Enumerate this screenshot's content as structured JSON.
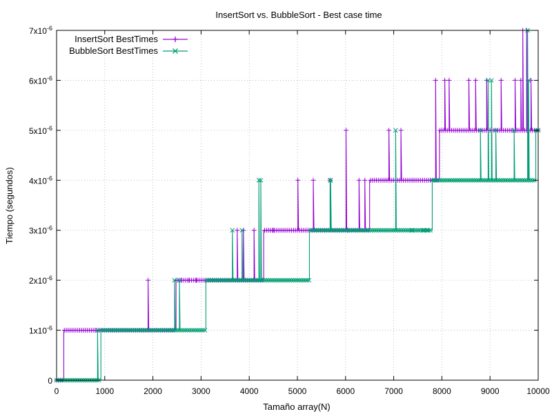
{
  "chart_data": {
    "type": "line",
    "title": "InsertSort vs. BubbleSort - Best case time",
    "xlabel": "Tamaño array(N)",
    "ylabel": "Tiempo (segundos)",
    "xlim": [
      0,
      10000
    ],
    "ylim": [
      0,
      7
    ],
    "y_unit_multiplier": "x10^-6",
    "x_ticks": [
      0,
      1000,
      2000,
      3000,
      4000,
      5000,
      6000,
      7000,
      8000,
      9000,
      10000
    ],
    "x_tick_labels": [
      "0",
      "1000",
      "2000",
      "3000",
      "4000",
      "5000",
      "6000",
      "7000",
      "8000",
      "9000",
      "10000"
    ],
    "y_ticks": [
      0,
      1,
      2,
      3,
      4,
      5,
      6,
      7
    ],
    "y_tick_labels": [
      {
        "base": "0",
        "exp": ""
      },
      {
        "base": "1x10",
        "exp": "-6"
      },
      {
        "base": "2x10",
        "exp": "-6"
      },
      {
        "base": "3x10",
        "exp": "-6"
      },
      {
        "base": "4x10",
        "exp": "-6"
      },
      {
        "base": "5x10",
        "exp": "-6"
      },
      {
        "base": "6x10",
        "exp": "-6"
      },
      {
        "base": "7x10",
        "exp": "-6"
      }
    ],
    "grid": true,
    "legend_position": "top-left",
    "series": [
      {
        "name": "InsertSort BestTimes",
        "color": "#9400d3",
        "marker": "plus",
        "steps": [
          [
            0,
            0
          ],
          [
            150,
            1
          ],
          [
            2480,
            2
          ],
          [
            4300,
            3
          ],
          [
            6500,
            4
          ],
          [
            7950,
            5
          ]
        ],
        "spikes": [
          [
            1900,
            2
          ],
          [
            2600,
            2
          ],
          [
            2750,
            2
          ],
          [
            2900,
            2
          ],
          [
            3750,
            3
          ],
          [
            3880,
            3
          ],
          [
            4100,
            3
          ],
          [
            4500,
            3
          ],
          [
            5010,
            4
          ],
          [
            5330,
            4
          ],
          [
            5680,
            4
          ],
          [
            6010,
            5
          ],
          [
            6050,
            3
          ],
          [
            6280,
            4
          ],
          [
            6400,
            4
          ],
          [
            6900,
            5
          ],
          [
            7150,
            5
          ],
          [
            7400,
            4
          ],
          [
            7870,
            6
          ],
          [
            8060,
            6
          ],
          [
            8150,
            6
          ],
          [
            8560,
            6
          ],
          [
            8700,
            6
          ],
          [
            8930,
            6
          ],
          [
            9230,
            6
          ],
          [
            9520,
            6
          ],
          [
            9640,
            6
          ],
          [
            9680,
            7
          ],
          [
            9760,
            7
          ],
          [
            9850,
            6
          ]
        ]
      },
      {
        "name": "BubbleSort BestTimes",
        "color": "#009e73",
        "marker": "x",
        "steps": [
          [
            0,
            0
          ],
          [
            920,
            1
          ],
          [
            3100,
            2
          ],
          [
            5250,
            3
          ],
          [
            7800,
            4
          ],
          [
            9950,
            5
          ]
        ],
        "spikes": [
          [
            850,
            1
          ],
          [
            2450,
            2
          ],
          [
            2550,
            2
          ],
          [
            3650,
            3
          ],
          [
            3850,
            3
          ],
          [
            4200,
            4
          ],
          [
            4240,
            4
          ],
          [
            5680,
            4
          ],
          [
            5690,
            4
          ],
          [
            7040,
            5
          ],
          [
            7380,
            3
          ],
          [
            7620,
            3
          ],
          [
            7700,
            3
          ],
          [
            8800,
            5
          ],
          [
            8960,
            6
          ],
          [
            9030,
            6
          ],
          [
            9120,
            5
          ],
          [
            9500,
            5
          ],
          [
            9780,
            7
          ],
          [
            9800,
            6
          ]
        ]
      }
    ]
  }
}
